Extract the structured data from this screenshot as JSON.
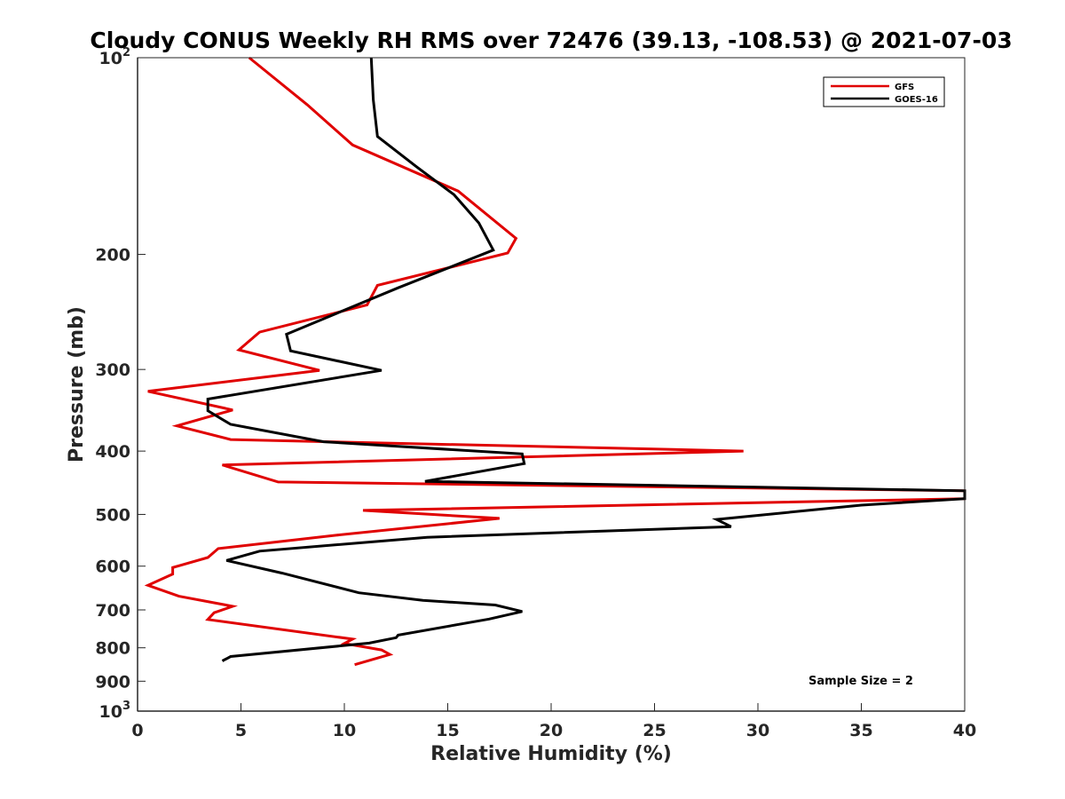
{
  "chart_data": {
    "type": "line",
    "title": "Cloudy CONUS Weekly RH RMS over 72476 (39.13, -108.53) @ 2021-07-03",
    "xlabel": "Relative Humidity (%)",
    "ylabel": "Pressure (mb)",
    "xlim": [
      0,
      40
    ],
    "ylim": [
      100,
      1000
    ],
    "yscale": "log",
    "y_reversed": true,
    "x_ticks": [
      0,
      5,
      10,
      15,
      20,
      25,
      30,
      35,
      40
    ],
    "x_tick_labels": [
      "0",
      "5",
      "10",
      "15",
      "20",
      "25",
      "30",
      "35",
      "40"
    ],
    "y_ticks": [
      100,
      200,
      300,
      400,
      500,
      600,
      700,
      800,
      900,
      1000
    ],
    "y_tick_labels": [
      {
        "base": "10",
        "exp": "2"
      },
      {
        "base": "200",
        "exp": ""
      },
      {
        "base": "300",
        "exp": ""
      },
      {
        "base": "400",
        "exp": ""
      },
      {
        "base": "500",
        "exp": ""
      },
      {
        "base": "600",
        "exp": ""
      },
      {
        "base": "700",
        "exp": ""
      },
      {
        "base": "800",
        "exp": ""
      },
      {
        "base": "900",
        "exp": ""
      },
      {
        "base": "10",
        "exp": "3"
      }
    ],
    "grid": false,
    "legend_position": "top-right",
    "annotation": "Sample Size = 2",
    "series": [
      {
        "name": "GFS",
        "color": "#e00000",
        "points": [
          [
            5.4,
            100
          ],
          [
            8.2,
            118
          ],
          [
            10.4,
            136
          ],
          [
            15.5,
            160
          ],
          [
            18.3,
            189
          ],
          [
            17.9,
            199
          ],
          [
            11.6,
            223
          ],
          [
            11.1,
            239
          ],
          [
            5.9,
            263
          ],
          [
            4.9,
            280
          ],
          [
            8.8,
            301
          ],
          [
            0.5,
            324
          ],
          [
            4.6,
            346
          ],
          [
            1.9,
            366
          ],
          [
            4.5,
            384
          ],
          [
            29.3,
            400
          ],
          [
            4.1,
            420
          ],
          [
            6.8,
            446
          ],
          [
            40.0,
            460
          ],
          [
            40.0,
            473
          ],
          [
            10.9,
            493
          ],
          [
            17.5,
            507
          ],
          [
            9.6,
            538
          ],
          [
            3.9,
            564
          ],
          [
            3.4,
            582
          ],
          [
            1.7,
            603
          ],
          [
            1.7,
            617
          ],
          [
            0.5,
            642
          ],
          [
            2.0,
            667
          ],
          [
            4.6,
            691
          ],
          [
            3.7,
            707
          ],
          [
            3.4,
            724
          ],
          [
            10.4,
            776
          ],
          [
            10.0,
            788
          ],
          [
            11.8,
            806
          ],
          [
            12.2,
            819
          ],
          [
            10.5,
            849
          ]
        ]
      },
      {
        "name": "GOES-16",
        "color": "#000000",
        "points": [
          [
            11.3,
            100
          ],
          [
            11.4,
            116
          ],
          [
            11.6,
            132
          ],
          [
            13.5,
            147
          ],
          [
            15.3,
            162
          ],
          [
            16.5,
            179
          ],
          [
            17.2,
            197
          ],
          [
            12.6,
            225
          ],
          [
            7.2,
            265
          ],
          [
            7.4,
            281
          ],
          [
            11.8,
            301
          ],
          [
            3.4,
            333
          ],
          [
            3.4,
            347
          ],
          [
            4.5,
            364
          ],
          [
            9.0,
            387
          ],
          [
            18.6,
            404
          ],
          [
            18.7,
            418
          ],
          [
            13.9,
            445
          ],
          [
            40.0,
            460
          ],
          [
            40.0,
            473
          ],
          [
            35.0,
            484
          ],
          [
            28.0,
            509
          ],
          [
            28.7,
            522
          ],
          [
            14.0,
            542
          ],
          [
            5.9,
            569
          ],
          [
            4.3,
            588
          ],
          [
            7.0,
            615
          ],
          [
            10.7,
            659
          ],
          [
            13.8,
            677
          ],
          [
            17.3,
            688
          ],
          [
            18.6,
            704
          ],
          [
            17.0,
            723
          ],
          [
            12.6,
            765
          ],
          [
            12.5,
            772
          ],
          [
            11.2,
            787
          ],
          [
            4.5,
            825
          ],
          [
            4.1,
            838
          ]
        ]
      }
    ]
  }
}
